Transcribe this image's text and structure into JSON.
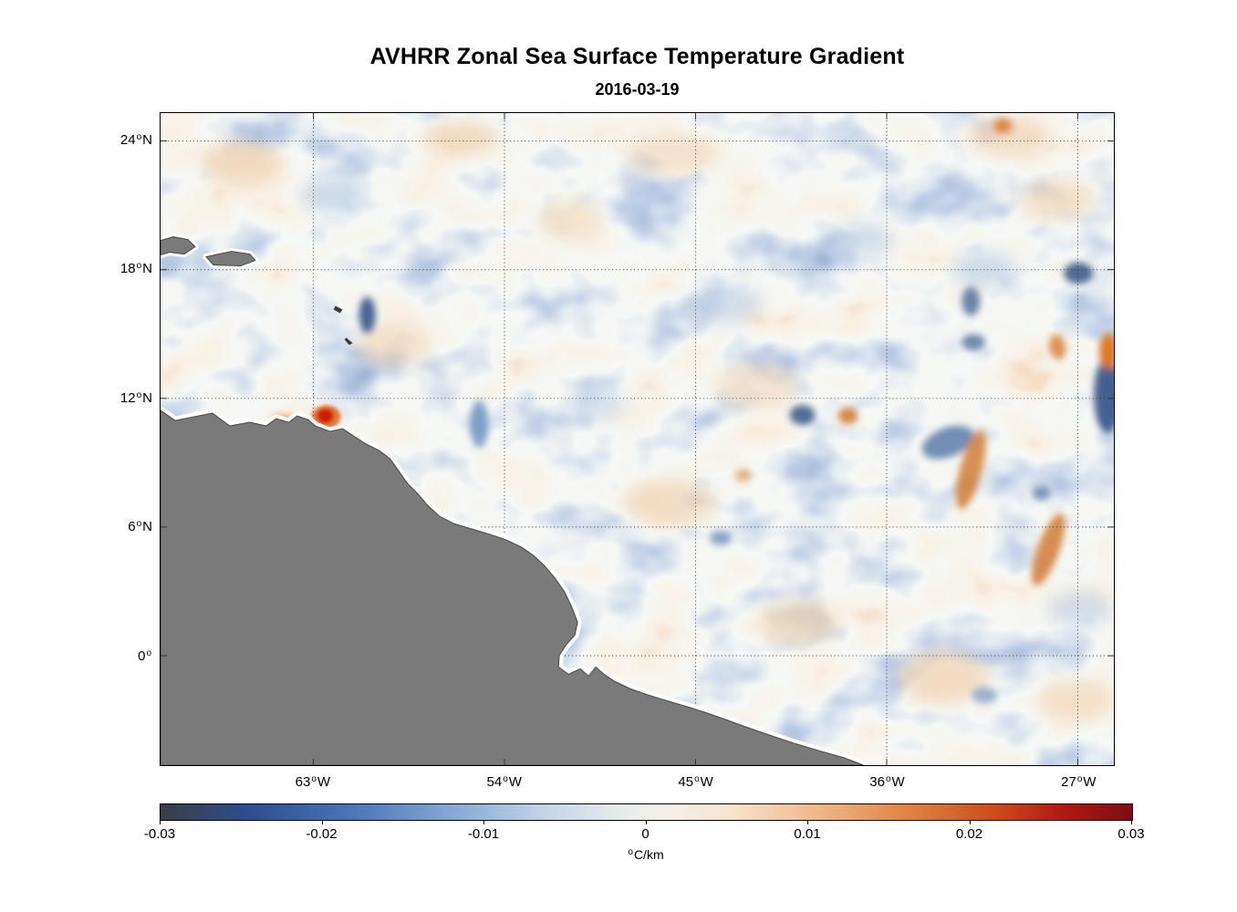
{
  "chart_data": {
    "type": "heatmap",
    "title": "AVHRR Zonal Sea Surface Temperature Gradient",
    "subtitle": "2016-03-19",
    "field": "zonal sea surface temperature gradient from AVHRR satellite SST",
    "units": "°C/km",
    "value_range": [
      -0.03,
      0.03
    ],
    "grid": "dotted",
    "x_axis": {
      "kind": "longitude",
      "lim": [
        -70.2,
        -25.3
      ],
      "ticks": [
        {
          "value": -63,
          "num": "63",
          "deg": "o",
          "hemi": "W"
        },
        {
          "value": -54,
          "num": "54",
          "deg": "o",
          "hemi": "W"
        },
        {
          "value": -45,
          "num": "45",
          "deg": "o",
          "hemi": "W"
        },
        {
          "value": -36,
          "num": "36",
          "deg": "o",
          "hemi": "W"
        },
        {
          "value": -27,
          "num": "27",
          "deg": "o",
          "hemi": "W"
        }
      ]
    },
    "y_axis": {
      "kind": "latitude",
      "lim": [
        -5.1,
        25.3
      ],
      "ticks": [
        {
          "value": 24,
          "num": "24",
          "deg": "o",
          "hemi": "N"
        },
        {
          "value": 18,
          "num": "18",
          "deg": "o",
          "hemi": "N"
        },
        {
          "value": 12,
          "num": "12",
          "deg": "o",
          "hemi": "N"
        },
        {
          "value": 6,
          "num": "6",
          "deg": "o",
          "hemi": "N"
        },
        {
          "value": 0,
          "num": "0",
          "deg": "o",
          "hemi": ""
        }
      ]
    },
    "colorbar": {
      "orientation": "horizontal",
      "lim": [
        -0.03,
        0.03
      ],
      "tick_values": [
        -0.03,
        -0.02,
        -0.01,
        0,
        0.01,
        0.02,
        0.03
      ],
      "tick_labels": [
        "-0.03",
        "-0.02",
        "-0.01",
        "0",
        "0.01",
        "0.02",
        "0.03"
      ],
      "unit_deg": "o",
      "unit": "C/km",
      "gradient": [
        [
          "#3a3e46",
          0
        ],
        [
          "#2e4e8e",
          9
        ],
        [
          "#4673b6",
          19
        ],
        [
          "#85a8d2",
          30
        ],
        [
          "#c6d6e8",
          40
        ],
        [
          "#edefeb",
          49
        ],
        [
          "#f4efe7",
          53
        ],
        [
          "#f7e2ca",
          59
        ],
        [
          "#eeb685",
          68
        ],
        [
          "#de8342",
          77
        ],
        [
          "#cb4c1c",
          86
        ],
        [
          "#ae1a12",
          93
        ],
        [
          "#7c0e16",
          100
        ]
      ]
    },
    "land": {
      "color": "#7a7a7a",
      "regions": [
        "northern South America coastline occupying lower-left of map",
        "islands near 18N along western edge",
        "small islets near 16N, 65W"
      ]
    },
    "features": [
      {
        "desc": "strong positive (red) gradient spot just off the Venezuelan coast",
        "approx_location": "63.5W 11.5N",
        "sign": "positive",
        "approx_value": 0.03
      },
      {
        "desc": "strong negative (dark blue) patch near eastern map edge",
        "approx_location": "26W 11-14N",
        "sign": "negative",
        "approx_value": -0.02
      },
      {
        "desc": "bright orange patch at eastern edge",
        "approx_location": "26W 14.5N",
        "sign": "positive",
        "approx_value": 0.02
      },
      {
        "desc": "elongated positive (orange) filaments",
        "approx_location": "31-34W 4-9N",
        "sign": "positive",
        "approx_value": 0.015
      },
      {
        "desc": "negative (dark blue) patch cluster",
        "approx_location": "33-34W 10-11N",
        "sign": "negative",
        "approx_value": -0.015
      },
      {
        "desc": "paired orange/blue eddy signature",
        "approx_location": "38W 11N",
        "sign": "mixed",
        "approx_value": 0.012
      },
      {
        "desc": "weak mottled field of alternating patches elsewhere",
        "approx_location": "basin-wide",
        "sign": "mixed",
        "approx_value": 0.005
      }
    ]
  }
}
